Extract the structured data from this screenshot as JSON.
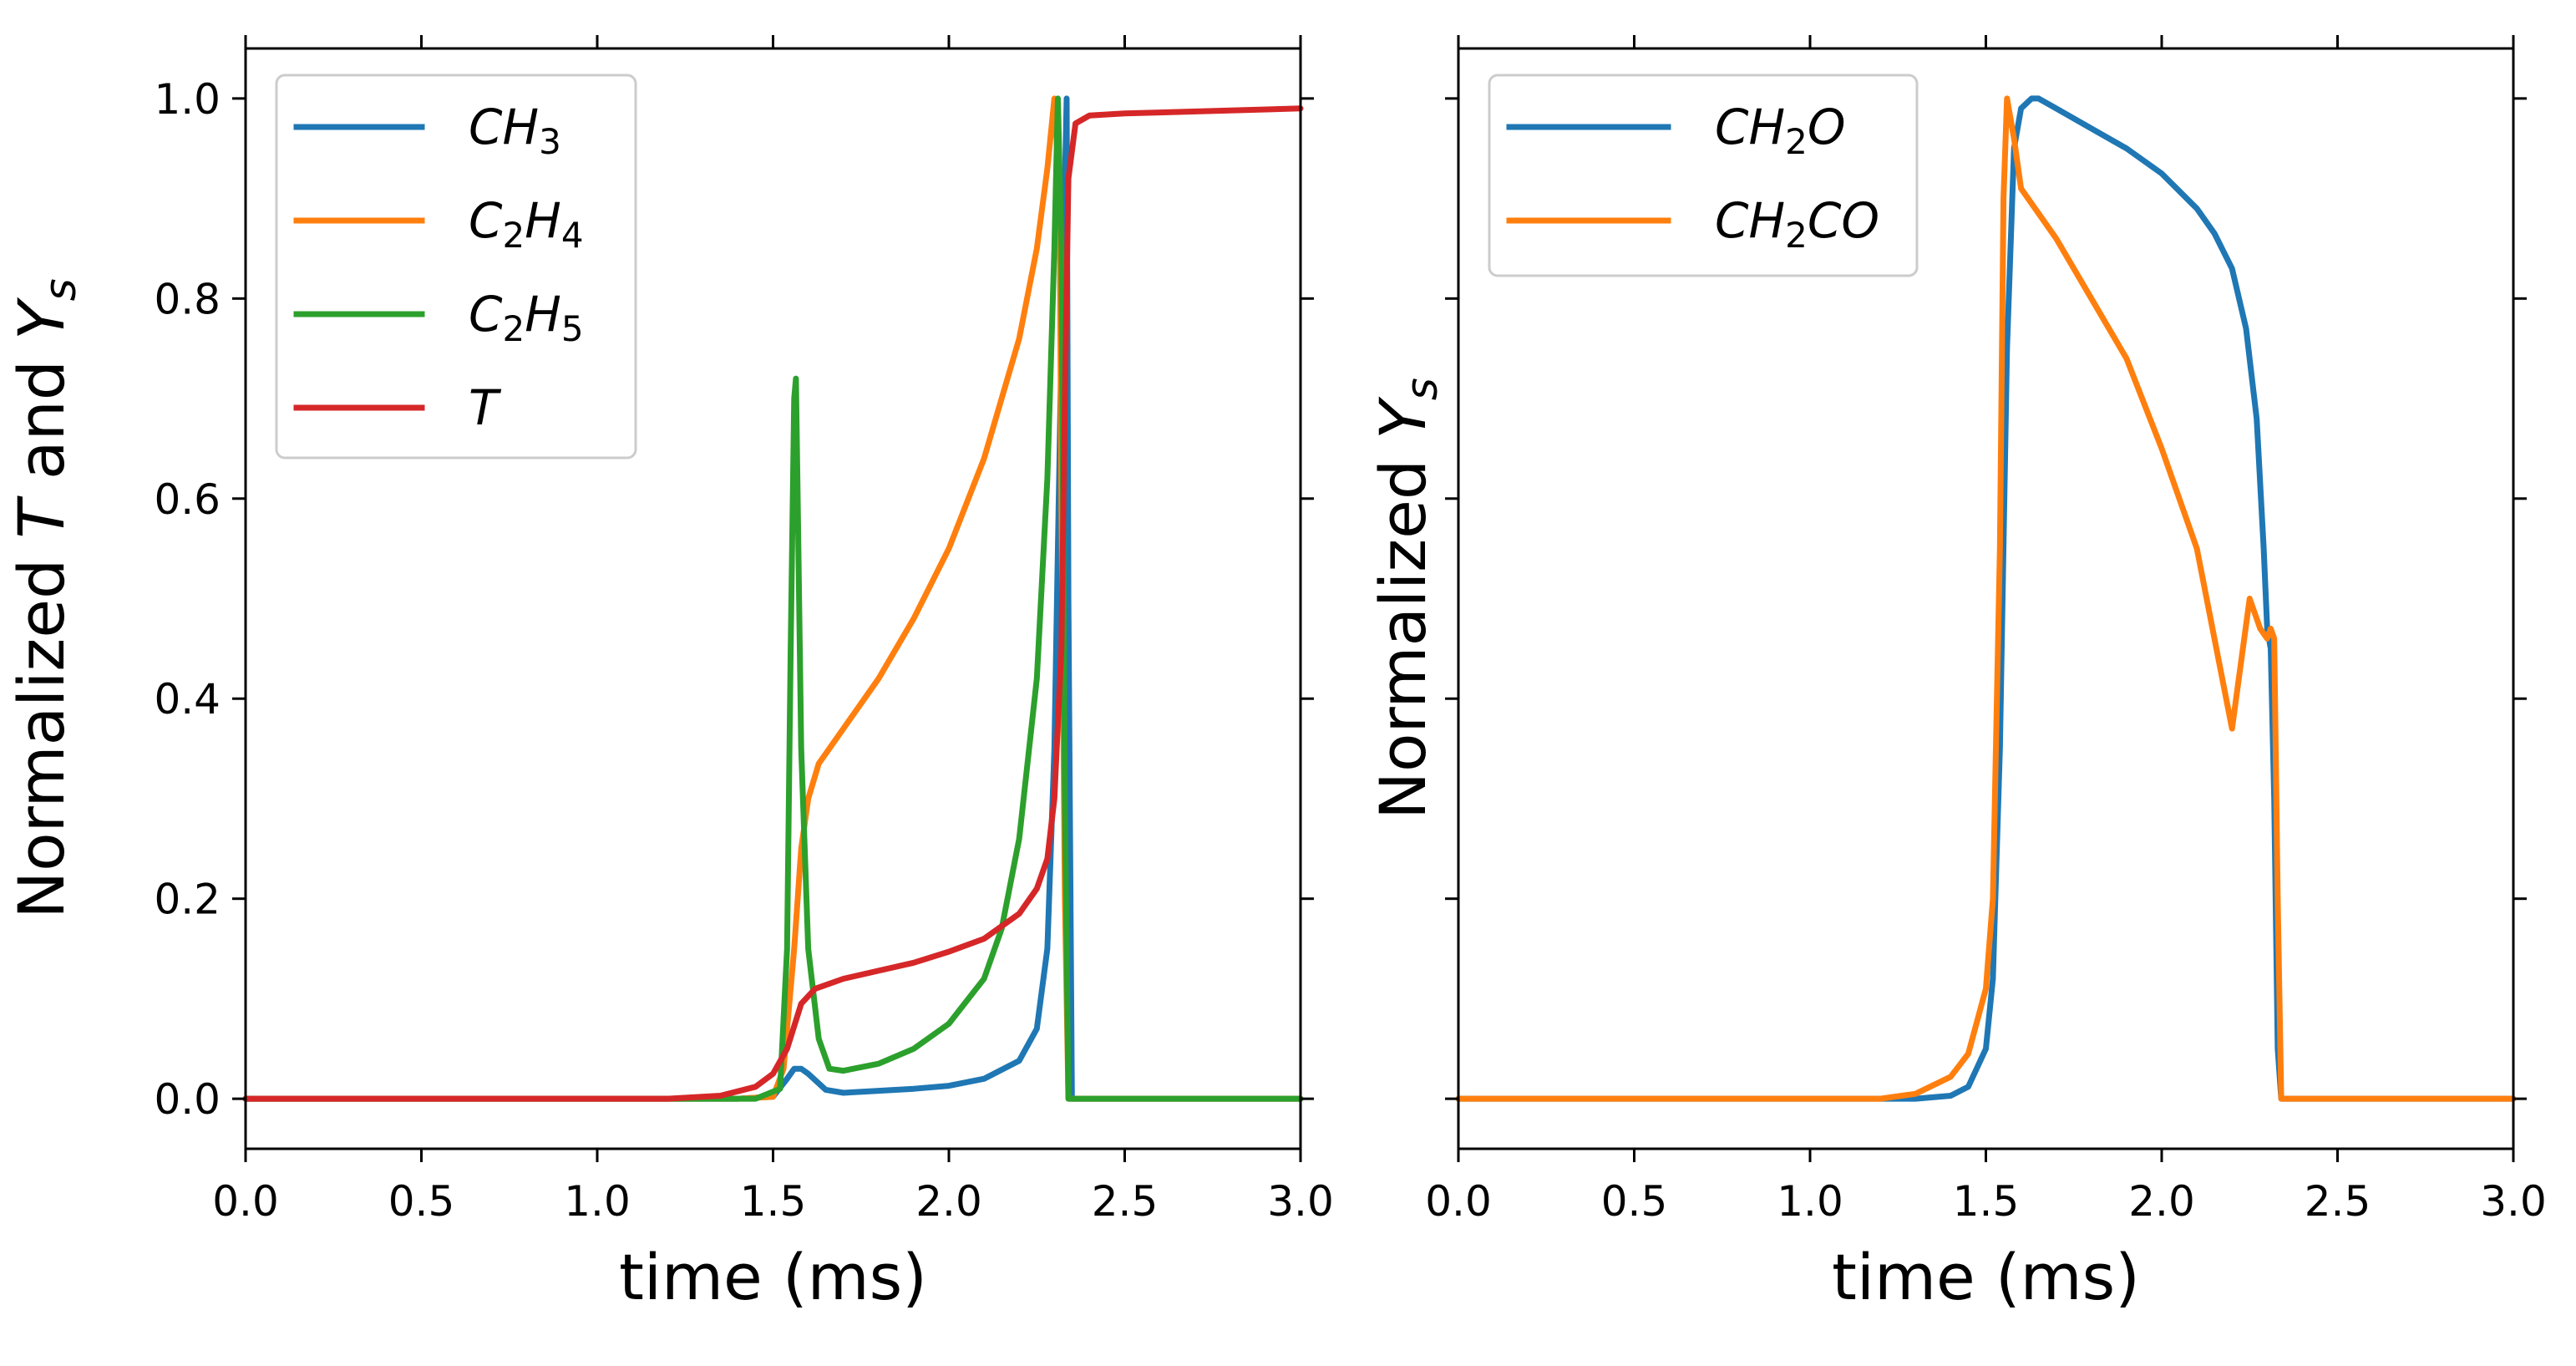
{
  "chart_data": [
    {
      "type": "line",
      "panel": "left",
      "xlabel": "time (ms)",
      "ylabel": {
        "pre": "Normalized ",
        "T": "T",
        "mid": " and ",
        "Y": "Y",
        "sub": "s"
      },
      "xlim": [
        0,
        3.0
      ],
      "ylim": [
        -0.05,
        1.05
      ],
      "xticks": [
        "0.0",
        "0.5",
        "1.0",
        "1.5",
        "2.0",
        "2.5",
        "3.0"
      ],
      "yticks": [
        "0.0",
        "0.2",
        "0.4",
        "0.6",
        "0.8",
        "1.0"
      ],
      "legend_position": "upper-left",
      "series": [
        {
          "name": "CH3",
          "label_parts": [
            [
              "CH",
              ""
            ],
            [
              "3",
              "sub"
            ]
          ],
          "color": "#1f77b4",
          "x": [
            0,
            1.4,
            1.5,
            1.54,
            1.56,
            1.58,
            1.6,
            1.65,
            1.7,
            1.8,
            1.9,
            2.0,
            2.1,
            2.2,
            2.25,
            2.28,
            2.3,
            2.32,
            2.335,
            2.34,
            2.35,
            3.0
          ],
          "y": [
            0,
            0,
            0.002,
            0.02,
            0.03,
            0.03,
            0.025,
            0.009,
            0.006,
            0.008,
            0.01,
            0.013,
            0.02,
            0.038,
            0.07,
            0.15,
            0.35,
            0.75,
            1.0,
            0.5,
            0.0,
            0.0
          ]
        },
        {
          "name": "C2H4",
          "label_parts": [
            [
              "C",
              ""
            ],
            [
              "2",
              "sub"
            ],
            [
              "H",
              ""
            ],
            [
              "4",
              "sub"
            ]
          ],
          "color": "#ff7f0e",
          "x": [
            0,
            1.4,
            1.5,
            1.53,
            1.56,
            1.58,
            1.6,
            1.63,
            1.65,
            1.7,
            1.8,
            1.9,
            2.0,
            2.1,
            2.2,
            2.25,
            2.28,
            2.3,
            2.315,
            2.32,
            2.33,
            2.34,
            3.0
          ],
          "y": [
            0,
            0,
            0.002,
            0.03,
            0.15,
            0.25,
            0.3,
            0.335,
            0.345,
            0.37,
            0.42,
            0.48,
            0.55,
            0.64,
            0.76,
            0.85,
            0.93,
            1.0,
            0.9,
            0.6,
            0.2,
            0.0,
            0.0
          ]
        },
        {
          "name": "C2H5",
          "label_parts": [
            [
              "C",
              ""
            ],
            [
              "2",
              "sub"
            ],
            [
              "H",
              ""
            ],
            [
              "5",
              "sub"
            ]
          ],
          "color": "#2ca02c",
          "x": [
            0,
            1.45,
            1.52,
            1.54,
            1.55,
            1.56,
            1.565,
            1.57,
            1.58,
            1.6,
            1.63,
            1.66,
            1.7,
            1.8,
            1.9,
            2.0,
            2.1,
            2.15,
            2.2,
            2.25,
            2.28,
            2.3,
            2.31,
            2.32,
            2.33,
            2.34,
            3.0
          ],
          "y": [
            0,
            0,
            0.01,
            0.15,
            0.45,
            0.7,
            0.72,
            0.6,
            0.35,
            0.15,
            0.06,
            0.03,
            0.028,
            0.035,
            0.05,
            0.075,
            0.12,
            0.17,
            0.26,
            0.42,
            0.62,
            0.85,
            1.0,
            0.85,
            0.3,
            0.0,
            0.0
          ]
        },
        {
          "name": "T",
          "label_parts": [
            [
              "T",
              ""
            ]
          ],
          "color": "#d62728",
          "x": [
            0,
            1.2,
            1.35,
            1.45,
            1.5,
            1.54,
            1.58,
            1.62,
            1.7,
            1.8,
            1.9,
            2.0,
            2.1,
            2.2,
            2.25,
            2.28,
            2.3,
            2.32,
            2.33,
            2.34,
            2.36,
            2.4,
            2.5,
            3.0
          ],
          "y": [
            0,
            0,
            0.003,
            0.012,
            0.025,
            0.05,
            0.095,
            0.11,
            0.12,
            0.128,
            0.136,
            0.147,
            0.16,
            0.185,
            0.21,
            0.24,
            0.3,
            0.45,
            0.7,
            0.92,
            0.975,
            0.983,
            0.985,
            0.99
          ]
        }
      ]
    },
    {
      "type": "line",
      "panel": "right",
      "xlabel": "time (ms)",
      "ylabel": {
        "pre": "Normalized ",
        "Y": "Y",
        "sub": "s"
      },
      "xlim": [
        0,
        3.0
      ],
      "ylim": [
        -0.05,
        1.05
      ],
      "xticks": [
        "0.0",
        "0.5",
        "1.0",
        "1.5",
        "2.0",
        "2.5",
        "3.0"
      ],
      "yticks": [],
      "legend_position": "upper-left",
      "series": [
        {
          "name": "CH2O",
          "label_parts": [
            [
              "CH",
              ""
            ],
            [
              "2",
              "sub"
            ],
            [
              "O",
              ""
            ]
          ],
          "color": "#1f77b4",
          "x": [
            0,
            1.3,
            1.4,
            1.45,
            1.5,
            1.52,
            1.54,
            1.56,
            1.58,
            1.6,
            1.63,
            1.65,
            1.7,
            1.8,
            1.9,
            2.0,
            2.1,
            2.15,
            2.2,
            2.24,
            2.27,
            2.29,
            2.3,
            2.31,
            2.32,
            2.33,
            2.34,
            3.0
          ],
          "y": [
            0,
            0,
            0.003,
            0.012,
            0.05,
            0.12,
            0.35,
            0.75,
            0.95,
            0.99,
            1.0,
            1.0,
            0.99,
            0.97,
            0.95,
            0.925,
            0.89,
            0.865,
            0.83,
            0.77,
            0.68,
            0.55,
            0.47,
            0.45,
            0.3,
            0.05,
            0.0,
            0.0
          ]
        },
        {
          "name": "CH2CO",
          "label_parts": [
            [
              "CH",
              ""
            ],
            [
              "2",
              "sub"
            ],
            [
              "CO",
              ""
            ]
          ],
          "color": "#ff7f0e",
          "x": [
            0,
            1.2,
            1.3,
            1.4,
            1.45,
            1.5,
            1.52,
            1.54,
            1.55,
            1.56,
            1.58,
            1.6,
            1.65,
            1.7,
            1.8,
            1.9,
            2.0,
            2.1,
            2.2,
            2.25,
            2.28,
            2.3,
            2.31,
            2.32,
            2.33,
            2.34,
            3.0
          ],
          "y": [
            0,
            0,
            0.005,
            0.022,
            0.045,
            0.11,
            0.2,
            0.55,
            0.9,
            1.0,
            0.96,
            0.91,
            0.885,
            0.86,
            0.8,
            0.74,
            0.65,
            0.55,
            0.37,
            0.5,
            0.47,
            0.46,
            0.47,
            0.46,
            0.2,
            0.0,
            0.0
          ]
        }
      ]
    }
  ]
}
